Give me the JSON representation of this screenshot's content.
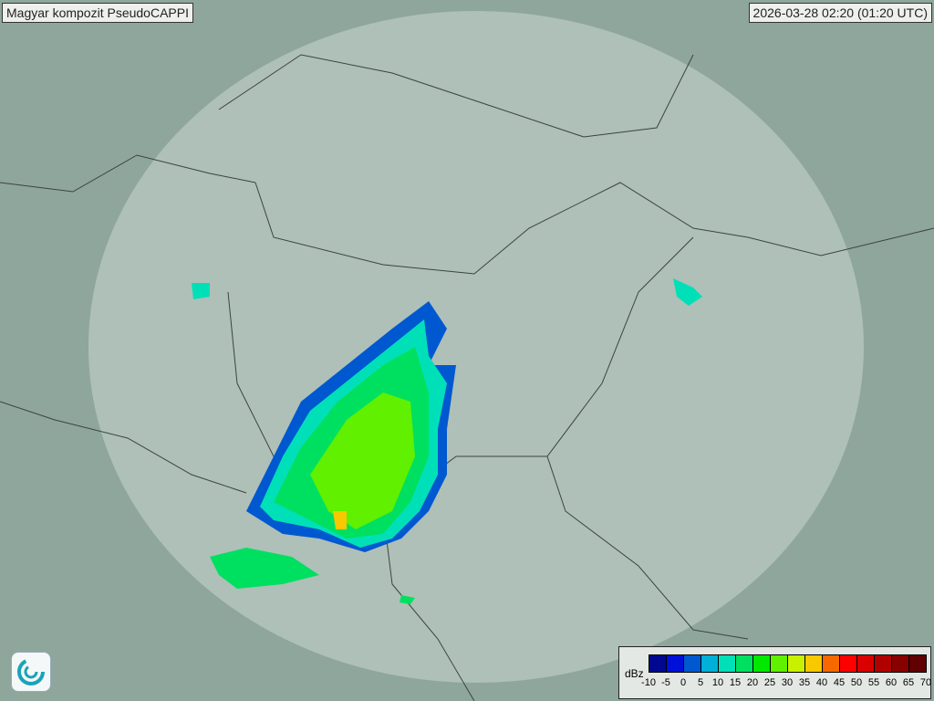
{
  "header": {
    "title": "Magyar kompozit  PseudoCAPPI",
    "timestamp": "2026-03-28 02:20 (01:20 UTC)"
  },
  "legend": {
    "unit": "dBz",
    "ticks": [
      "-10",
      "-5",
      "0",
      "5",
      "10",
      "15",
      "20",
      "25",
      "30",
      "35",
      "40",
      "45",
      "50",
      "55",
      "60",
      "65",
      "70"
    ],
    "colors": [
      "#00088f",
      "#0010d8",
      "#0058d0",
      "#00b0d8",
      "#00e0b8",
      "#00e060",
      "#00e800",
      "#60f000",
      "#c8f000",
      "#f8c800",
      "#f86800",
      "#ff0000",
      "#d80000",
      "#b00000",
      "#880000",
      "#600000"
    ]
  },
  "map": {
    "background": "#8fa69c",
    "coverage_fill": "#c8d6cf"
  },
  "logo": {
    "icon": "weather-service-swirl-logo"
  }
}
